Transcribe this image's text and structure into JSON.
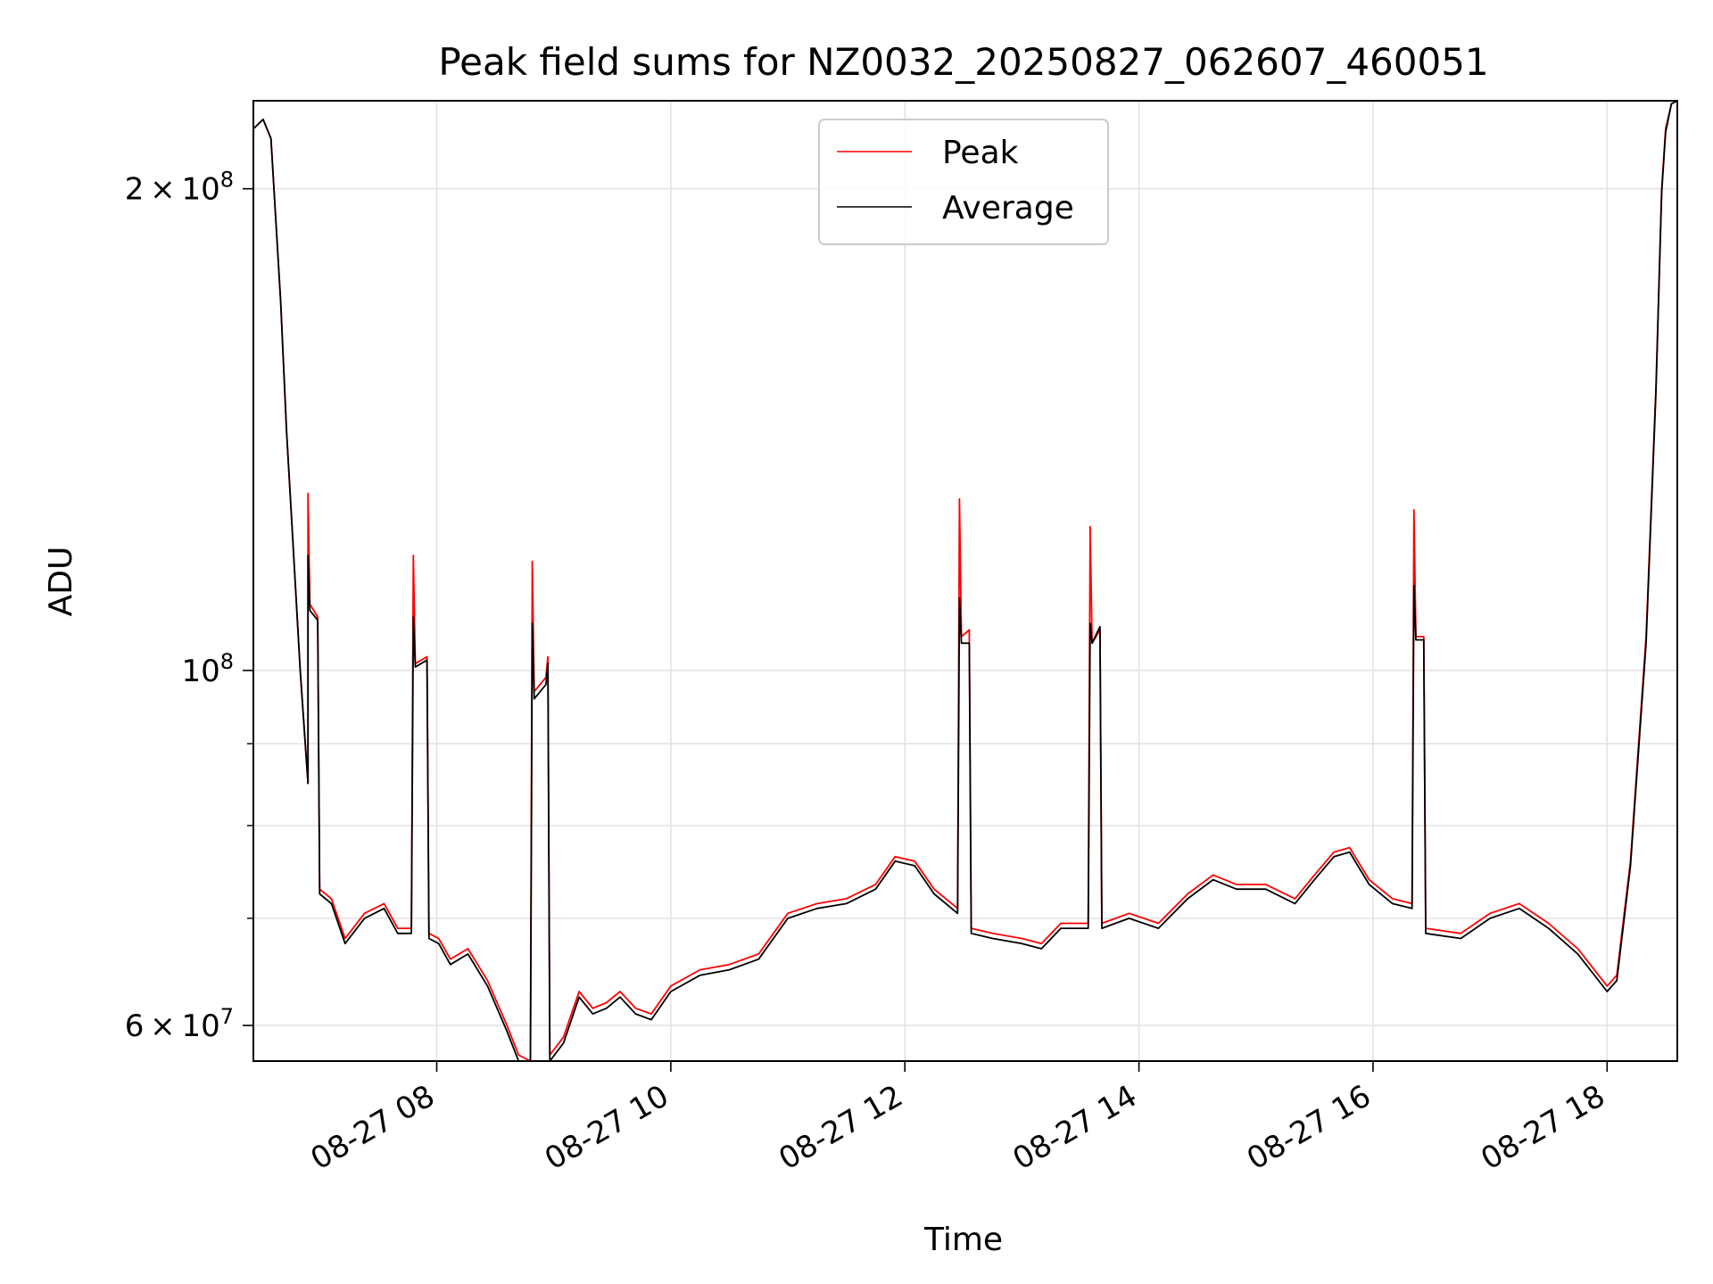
{
  "chart_data": {
    "type": "line",
    "title": "Peak field sums for NZ0032_20250827_062607_460051",
    "xlabel": "Time",
    "ylabel": "ADU",
    "x_range": [
      "2025-08-27T06:26",
      "2025-08-27T18:36"
    ],
    "ylim": [
      57000000,
      227000000
    ],
    "yscale": "log",
    "grid": true,
    "legend_position": "upper center",
    "x_ticks": [
      {
        "t": "2025-08-27T08:00",
        "label": "08-27 08"
      },
      {
        "t": "2025-08-27T10:00",
        "label": "08-27 10"
      },
      {
        "t": "2025-08-27T12:00",
        "label": "08-27 12"
      },
      {
        "t": "2025-08-27T14:00",
        "label": "08-27 14"
      },
      {
        "t": "2025-08-27T16:00",
        "label": "08-27 16"
      },
      {
        "t": "2025-08-27T18:00",
        "label": "08-27 18"
      }
    ],
    "y_ticks": [
      {
        "value": 60000000,
        "mantissa": "6",
        "base": "10",
        "exp": "7"
      },
      {
        "value": 100000000,
        "mantissa": "",
        "base": "10",
        "exp": "8"
      },
      {
        "value": 200000000,
        "mantissa": "2",
        "base": "10",
        "exp": "8"
      }
    ],
    "y_minor_ticks": [
      70000000,
      80000000,
      90000000
    ],
    "series": [
      {
        "name": "Peak",
        "color": "#ff0000",
        "points": [
          [
            "2025-08-27T06:26",
            218000000
          ],
          [
            "2025-08-27T06:31",
            221000000
          ],
          [
            "2025-08-27T06:35",
            215000000
          ],
          [
            "2025-08-27T06:40",
            170000000
          ],
          [
            "2025-08-27T06:43",
            141000000
          ],
          [
            "2025-08-27T06:46",
            122000000
          ],
          [
            "2025-08-27T06:50",
            100000000
          ],
          [
            "2025-08-27T06:54",
            85000000
          ],
          [
            "2025-08-27T06:54",
            129000000
          ],
          [
            "2025-08-27T06:55",
            110000000
          ],
          [
            "2025-08-27T06:59",
            108000000
          ],
          [
            "2025-08-27T07:00",
            73000000
          ],
          [
            "2025-08-27T07:06",
            72000000
          ],
          [
            "2025-08-27T07:13",
            68000000
          ],
          [
            "2025-08-27T07:23",
            70500000
          ],
          [
            "2025-08-27T07:33",
            71500000
          ],
          [
            "2025-08-27T07:40",
            69000000
          ],
          [
            "2025-08-27T07:47",
            69000000
          ],
          [
            "2025-08-27T07:48",
            118000000
          ],
          [
            "2025-08-27T07:49",
            101000000
          ],
          [
            "2025-08-27T07:55",
            102000000
          ],
          [
            "2025-08-27T07:56",
            68500000
          ],
          [
            "2025-08-27T08:01",
            68000000
          ],
          [
            "2025-08-27T08:07",
            66000000
          ],
          [
            "2025-08-27T08:16",
            67000000
          ],
          [
            "2025-08-27T08:26",
            64000000
          ],
          [
            "2025-08-27T08:36",
            60000000
          ],
          [
            "2025-08-27T08:42",
            57500000
          ],
          [
            "2025-08-27T08:48",
            57000000
          ],
          [
            "2025-08-27T08:49",
            117000000
          ],
          [
            "2025-08-27T08:50",
            97000000
          ],
          [
            "2025-08-27T08:56",
            99000000
          ],
          [
            "2025-08-27T08:57",
            102000000
          ],
          [
            "2025-08-27T08:58",
            57500000
          ],
          [
            "2025-08-27T09:05",
            59000000
          ],
          [
            "2025-08-27T09:13",
            63000000
          ],
          [
            "2025-08-27T09:20",
            61500000
          ],
          [
            "2025-08-27T09:27",
            62000000
          ],
          [
            "2025-08-27T09:34",
            63000000
          ],
          [
            "2025-08-27T09:42",
            61500000
          ],
          [
            "2025-08-27T09:50",
            61000000
          ],
          [
            "2025-08-27T10:00",
            63500000
          ],
          [
            "2025-08-27T10:15",
            65000000
          ],
          [
            "2025-08-27T10:30",
            65500000
          ],
          [
            "2025-08-27T10:45",
            66500000
          ],
          [
            "2025-08-27T11:00",
            70500000
          ],
          [
            "2025-08-27T11:15",
            71500000
          ],
          [
            "2025-08-27T11:30",
            72000000
          ],
          [
            "2025-08-27T11:45",
            73500000
          ],
          [
            "2025-08-27T11:55",
            76500000
          ],
          [
            "2025-08-27T12:05",
            76000000
          ],
          [
            "2025-08-27T12:15",
            73000000
          ],
          [
            "2025-08-27T12:27",
            71000000
          ],
          [
            "2025-08-27T12:28",
            128000000
          ],
          [
            "2025-08-27T12:29",
            105000000
          ],
          [
            "2025-08-27T12:33",
            106000000
          ],
          [
            "2025-08-27T12:34",
            69000000
          ],
          [
            "2025-08-27T12:45",
            68500000
          ],
          [
            "2025-08-27T13:00",
            68000000
          ],
          [
            "2025-08-27T13:10",
            67500000
          ],
          [
            "2025-08-27T13:20",
            69500000
          ],
          [
            "2025-08-27T13:34",
            69500000
          ],
          [
            "2025-08-27T13:35",
            123000000
          ],
          [
            "2025-08-27T13:36",
            104000000
          ],
          [
            "2025-08-27T13:40",
            106000000
          ],
          [
            "2025-08-27T13:41",
            69500000
          ],
          [
            "2025-08-27T13:55",
            70500000
          ],
          [
            "2025-08-27T14:10",
            69500000
          ],
          [
            "2025-08-27T14:25",
            72500000
          ],
          [
            "2025-08-27T14:38",
            74500000
          ],
          [
            "2025-08-27T14:50",
            73500000
          ],
          [
            "2025-08-27T15:05",
            73500000
          ],
          [
            "2025-08-27T15:20",
            72000000
          ],
          [
            "2025-08-27T15:30",
            74500000
          ],
          [
            "2025-08-27T15:40",
            77000000
          ],
          [
            "2025-08-27T15:48",
            77500000
          ],
          [
            "2025-08-27T15:58",
            74000000
          ],
          [
            "2025-08-27T16:10",
            72000000
          ],
          [
            "2025-08-27T16:20",
            71500000
          ],
          [
            "2025-08-27T16:21",
            126000000
          ],
          [
            "2025-08-27T16:22",
            105000000
          ],
          [
            "2025-08-27T16:26",
            105000000
          ],
          [
            "2025-08-27T16:27",
            69000000
          ],
          [
            "2025-08-27T16:45",
            68500000
          ],
          [
            "2025-08-27T17:00",
            70500000
          ],
          [
            "2025-08-27T17:15",
            71500000
          ],
          [
            "2025-08-27T17:30",
            69500000
          ],
          [
            "2025-08-27T17:45",
            67000000
          ],
          [
            "2025-08-27T18:00",
            63500000
          ],
          [
            "2025-08-27T18:05",
            64500000
          ],
          [
            "2025-08-27T18:12",
            76000000
          ],
          [
            "2025-08-27T18:20",
            105000000
          ],
          [
            "2025-08-27T18:25",
            150000000
          ],
          [
            "2025-08-27T18:28",
            200000000
          ],
          [
            "2025-08-27T18:30",
            218000000
          ],
          [
            "2025-08-27T18:33",
            226000000
          ],
          [
            "2025-08-27T18:36",
            227000000
          ]
        ]
      },
      {
        "name": "Average",
        "color": "#000000",
        "points": [
          [
            "2025-08-27T06:26",
            218000000
          ],
          [
            "2025-08-27T06:31",
            221000000
          ],
          [
            "2025-08-27T06:35",
            215000000
          ],
          [
            "2025-08-27T06:40",
            170000000
          ],
          [
            "2025-08-27T06:43",
            141000000
          ],
          [
            "2025-08-27T06:46",
            122000000
          ],
          [
            "2025-08-27T06:50",
            100000000
          ],
          [
            "2025-08-27T06:54",
            85000000
          ],
          [
            "2025-08-27T06:54",
            118000000
          ],
          [
            "2025-08-27T06:55",
            109000000
          ],
          [
            "2025-08-27T06:59",
            107500000
          ],
          [
            "2025-08-27T07:00",
            72500000
          ],
          [
            "2025-08-27T07:06",
            71500000
          ],
          [
            "2025-08-27T07:13",
            67500000
          ],
          [
            "2025-08-27T07:23",
            70000000
          ],
          [
            "2025-08-27T07:33",
            71000000
          ],
          [
            "2025-08-27T07:40",
            68500000
          ],
          [
            "2025-08-27T07:47",
            68500000
          ],
          [
            "2025-08-27T07:48",
            108000000
          ],
          [
            "2025-08-27T07:49",
            100500000
          ],
          [
            "2025-08-27T07:55",
            101500000
          ],
          [
            "2025-08-27T07:56",
            68000000
          ],
          [
            "2025-08-27T08:01",
            67500000
          ],
          [
            "2025-08-27T08:07",
            65500000
          ],
          [
            "2025-08-27T08:16",
            66500000
          ],
          [
            "2025-08-27T08:26",
            63500000
          ],
          [
            "2025-08-27T08:36",
            59500000
          ],
          [
            "2025-08-27T08:42",
            57000000
          ],
          [
            "2025-08-27T08:48",
            56500000
          ],
          [
            "2025-08-27T08:49",
            107000000
          ],
          [
            "2025-08-27T08:50",
            96000000
          ],
          [
            "2025-08-27T08:56",
            98000000
          ],
          [
            "2025-08-27T08:57",
            101000000
          ],
          [
            "2025-08-27T08:58",
            57000000
          ],
          [
            "2025-08-27T09:05",
            58500000
          ],
          [
            "2025-08-27T09:13",
            62500000
          ],
          [
            "2025-08-27T09:20",
            61000000
          ],
          [
            "2025-08-27T09:27",
            61500000
          ],
          [
            "2025-08-27T09:34",
            62500000
          ],
          [
            "2025-08-27T09:42",
            61000000
          ],
          [
            "2025-08-27T09:50",
            60500000
          ],
          [
            "2025-08-27T10:00",
            63000000
          ],
          [
            "2025-08-27T10:15",
            64500000
          ],
          [
            "2025-08-27T10:30",
            65000000
          ],
          [
            "2025-08-27T10:45",
            66000000
          ],
          [
            "2025-08-27T11:00",
            70000000
          ],
          [
            "2025-08-27T11:15",
            71000000
          ],
          [
            "2025-08-27T11:30",
            71500000
          ],
          [
            "2025-08-27T11:45",
            73000000
          ],
          [
            "2025-08-27T11:55",
            76000000
          ],
          [
            "2025-08-27T12:05",
            75500000
          ],
          [
            "2025-08-27T12:15",
            72500000
          ],
          [
            "2025-08-27T12:27",
            70500000
          ],
          [
            "2025-08-27T12:28",
            111000000
          ],
          [
            "2025-08-27T12:29",
            104000000
          ],
          [
            "2025-08-27T12:33",
            104000000
          ],
          [
            "2025-08-27T12:34",
            68500000
          ],
          [
            "2025-08-27T12:45",
            68000000
          ],
          [
            "2025-08-27T13:00",
            67500000
          ],
          [
            "2025-08-27T13:10",
            67000000
          ],
          [
            "2025-08-27T13:20",
            69000000
          ],
          [
            "2025-08-27T13:34",
            69000000
          ],
          [
            "2025-08-27T13:35",
            107000000
          ],
          [
            "2025-08-27T13:36",
            104000000
          ],
          [
            "2025-08-27T13:40",
            106500000
          ],
          [
            "2025-08-27T13:41",
            69000000
          ],
          [
            "2025-08-27T13:55",
            70000000
          ],
          [
            "2025-08-27T14:10",
            69000000
          ],
          [
            "2025-08-27T14:25",
            72000000
          ],
          [
            "2025-08-27T14:38",
            74000000
          ],
          [
            "2025-08-27T14:50",
            73000000
          ],
          [
            "2025-08-27T15:05",
            73000000
          ],
          [
            "2025-08-27T15:20",
            71500000
          ],
          [
            "2025-08-27T15:30",
            74000000
          ],
          [
            "2025-08-27T15:40",
            76500000
          ],
          [
            "2025-08-27T15:48",
            77000000
          ],
          [
            "2025-08-27T15:58",
            73500000
          ],
          [
            "2025-08-27T16:10",
            71500000
          ],
          [
            "2025-08-27T16:20",
            71000000
          ],
          [
            "2025-08-27T16:21",
            113000000
          ],
          [
            "2025-08-27T16:22",
            104500000
          ],
          [
            "2025-08-27T16:26",
            104500000
          ],
          [
            "2025-08-27T16:27",
            68500000
          ],
          [
            "2025-08-27T16:45",
            68000000
          ],
          [
            "2025-08-27T17:00",
            70000000
          ],
          [
            "2025-08-27T17:15",
            71000000
          ],
          [
            "2025-08-27T17:30",
            69000000
          ],
          [
            "2025-08-27T17:45",
            66500000
          ],
          [
            "2025-08-27T18:00",
            63000000
          ],
          [
            "2025-08-27T18:05",
            64000000
          ],
          [
            "2025-08-27T18:12",
            75500000
          ],
          [
            "2025-08-27T18:20",
            104000000
          ],
          [
            "2025-08-27T18:25",
            149000000
          ],
          [
            "2025-08-27T18:28",
            199000000
          ],
          [
            "2025-08-27T18:30",
            217000000
          ],
          [
            "2025-08-27T18:33",
            226000000
          ],
          [
            "2025-08-27T18:36",
            227000000
          ]
        ]
      }
    ]
  }
}
